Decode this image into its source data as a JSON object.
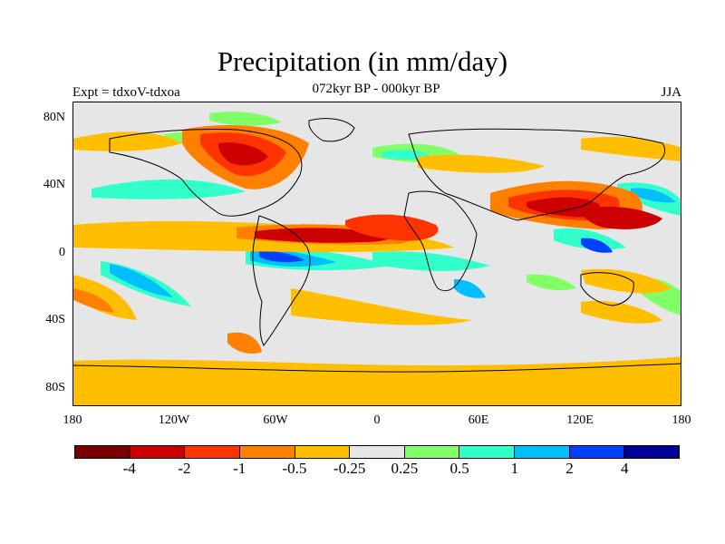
{
  "title": "Precipitation (in mm/day)",
  "subtitle": "072kyr BP - 000kyr BP",
  "left_label": "Expt = tdxoV-tdxoa",
  "right_label": "JJA",
  "lat_labels": [
    "80N",
    "40N",
    "0",
    "40S",
    "80S"
  ],
  "lon_labels": [
    "180",
    "120W",
    "60W",
    "0",
    "60E",
    "120E",
    "180"
  ],
  "colorbar": {
    "colors": [
      "#7a0000",
      "#cc0000",
      "#ff3300",
      "#ff7f00",
      "#ffbf00",
      "#e6e6e6",
      "#80ff66",
      "#33ffcc",
      "#00bfff",
      "#0040ff",
      "#000099"
    ],
    "labels": [
      "-4",
      "-2",
      "-1",
      "-0.5",
      "-0.25",
      "0.25",
      "0.5",
      "1",
      "2",
      "4"
    ]
  }
}
